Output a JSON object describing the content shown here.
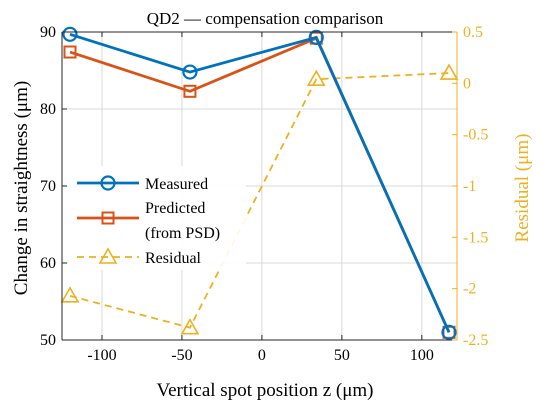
{
  "chart_data": {
    "type": "line",
    "title": "QD2 — compensation comparison",
    "xlabel": "Vertical spot position z (μm)",
    "ylabel": "Change in straightness (μm)",
    "y2label": "Residual (μm)",
    "xlim": [
      -125,
      122
    ],
    "ylim": [
      50,
      90
    ],
    "y2lim": [
      -2.5,
      0.5
    ],
    "xticks": [
      -100,
      -50,
      0,
      50,
      100
    ],
    "yticks": [
      50,
      60,
      70,
      80,
      90
    ],
    "y2ticks": [
      -2.5,
      -2,
      -1.5,
      -1,
      -0.5,
      0,
      0.5
    ],
    "y2ticklabels": [
      "-2.5",
      "-2",
      "-1.5",
      "-1",
      "-0.5",
      "0",
      "0.5"
    ],
    "grid": true,
    "legend_position": "left-center",
    "series": [
      {
        "name": "Measured",
        "axis": "left",
        "marker": "circle",
        "line": "solid",
        "color": "#0072BD",
        "x": [
          -120,
          -45,
          34,
          117
        ],
        "y": [
          89.7,
          84.8,
          89.3,
          51.0
        ]
      },
      {
        "name": "Predicted (from PSD)",
        "legend_lines": [
          "Predicted",
          "(from PSD)"
        ],
        "axis": "left",
        "marker": "square",
        "line": "solid",
        "color": "#D95319",
        "x": [
          -120,
          -45,
          34,
          117
        ],
        "y": [
          87.4,
          82.3,
          89.2,
          51.0
        ]
      },
      {
        "name": "Residual",
        "axis": "right",
        "marker": "triangle",
        "line": "dashed",
        "color": "#EDB120",
        "x": [
          -120,
          -45,
          34,
          117
        ],
        "y": [
          -2.07,
          -2.38,
          0.04,
          0.1
        ]
      }
    ]
  }
}
